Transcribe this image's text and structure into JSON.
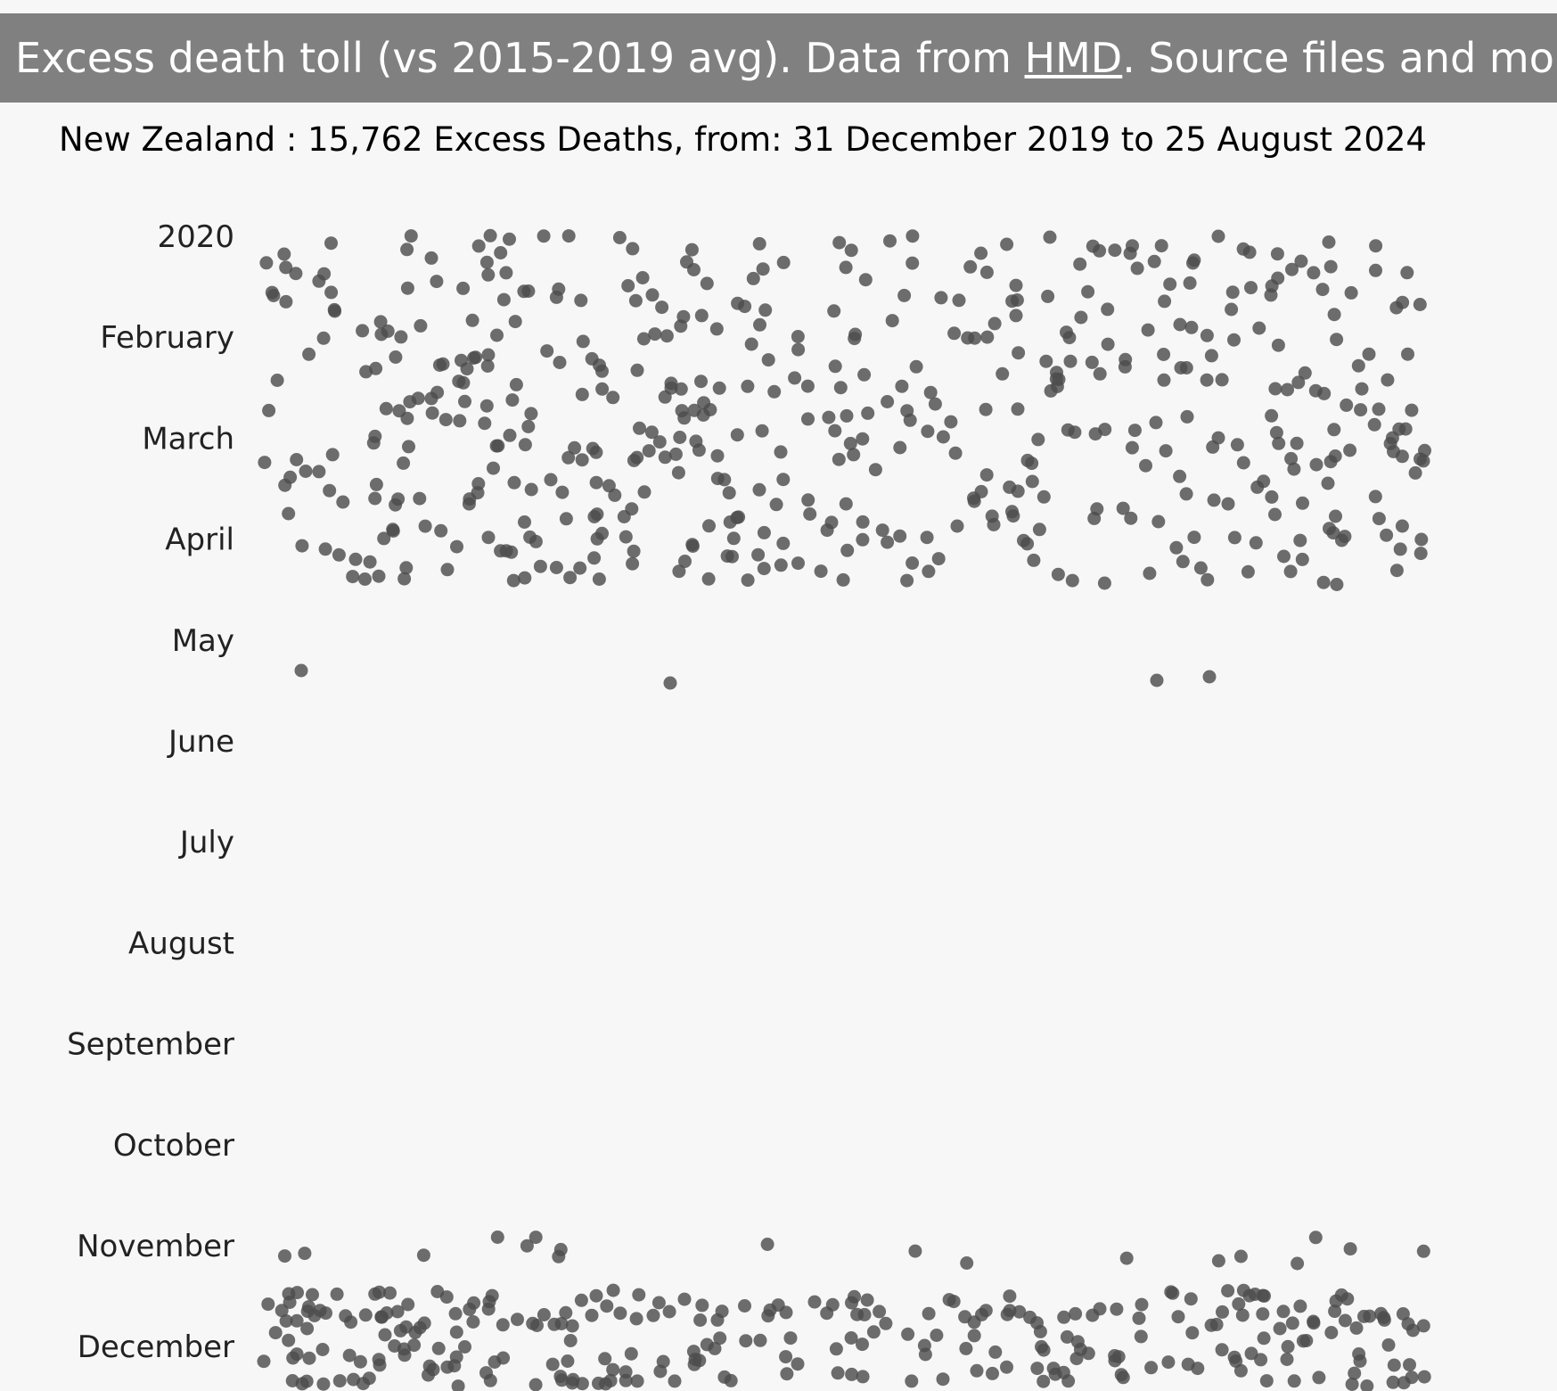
{
  "header": {
    "text_before": "Excess death toll (vs 2015-2019 avg). Data from ",
    "link_text": "HMD",
    "text_after": ". Source files and more info"
  },
  "subtitle": "New Zealand : 15,762 Excess Deaths, from: 31 December 2019 to 25 August 2024",
  "colors": {
    "header_bg": "#808080",
    "page_bg": "#f7f7f7",
    "dot": "#4d4d4d"
  },
  "chart_data": {
    "type": "scatter",
    "description_of_encoding": "",
    "y_axis": {
      "ticks": [
        "2020",
        "February",
        "March",
        "April",
        "May",
        "June",
        "July",
        "August",
        "September",
        "October",
        "November",
        "December"
      ],
      "direction": "top-to-bottom"
    },
    "x_axis": {
      "visible": false
    },
    "grid": false,
    "legend": "none",
    "clusters": [
      {
        "from": "2020",
        "to": "May",
        "approx_dots": 520
      },
      {
        "from": "November",
        "to": "December",
        "approx_dots": 300
      }
    ]
  }
}
